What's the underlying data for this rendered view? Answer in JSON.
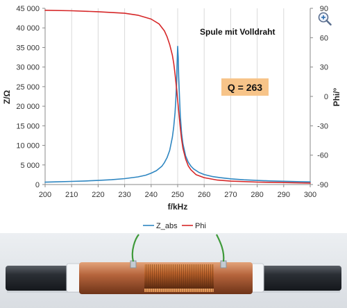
{
  "chart_data": {
    "type": "line",
    "title": "",
    "xlabel": "f/kHz",
    "ylabel": "Z/Ω",
    "y2label": "Phi/°",
    "xlim": [
      200,
      300
    ],
    "ylim": [
      0,
      45000
    ],
    "y2lim": [
      -90,
      90
    ],
    "xticks": [
      "200",
      "210",
      "220",
      "230",
      "240",
      "250",
      "260",
      "270",
      "280",
      "290",
      "300"
    ],
    "yticks": [
      "0",
      "5 000",
      "10 000",
      "15 000",
      "20 000",
      "25 000",
      "30 000",
      "35 000",
      "40 000",
      "45 000"
    ],
    "y2ticks": [
      "-90",
      "-60",
      "-30",
      "0",
      "30",
      "60",
      "90"
    ],
    "grid": "vertical",
    "legend_position": "bottom",
    "annotations": {
      "label": "Spule mit Volldraht",
      "q_box": "Q = 263"
    },
    "series": [
      {
        "name": "Z_abs",
        "axis": "left",
        "color": "#2e86c1",
        "x": [
          200,
          205,
          210,
          215,
          220,
          225,
          230,
          235,
          238,
          240,
          242,
          244,
          245,
          246,
          247,
          248,
          248.5,
          249,
          249.3,
          249.6,
          249.8,
          250,
          250.2,
          250.4,
          250.7,
          251,
          251.5,
          252,
          253,
          254,
          255,
          256,
          258,
          260,
          263,
          266,
          270,
          275,
          280,
          285,
          290,
          295,
          300
        ],
        "y": [
          600,
          690,
          790,
          900,
          1050,
          1230,
          1500,
          1950,
          2400,
          2900,
          3550,
          4650,
          5600,
          6850,
          8700,
          12100,
          14700,
          18300,
          21500,
          26500,
          31000,
          35300,
          32500,
          27500,
          22100,
          17600,
          13000,
          10400,
          7300,
          5700,
          4700,
          4000,
          3100,
          2550,
          2050,
          1750,
          1450,
          1200,
          1050,
          930,
          830,
          750,
          680
        ]
      },
      {
        "name": "Phi",
        "axis": "right",
        "color": "#d62728",
        "x": [
          200,
          210,
          220,
          230,
          235,
          240,
          243,
          245,
          246,
          247,
          248,
          248.5,
          249,
          249.5,
          250,
          250.5,
          251,
          251.5,
          252,
          253,
          254,
          255,
          257,
          260,
          265,
          270,
          280,
          290,
          300
        ],
        "y": [
          88,
          87.5,
          86.5,
          85,
          83,
          79,
          74,
          67,
          61,
          53,
          42,
          34,
          23,
          10,
          -4,
          -18,
          -32,
          -44,
          -53,
          -64,
          -71,
          -75,
          -80,
          -83,
          -85.5,
          -86.5,
          -87.5,
          -88,
          -88.5
        ]
      }
    ]
  }
}
